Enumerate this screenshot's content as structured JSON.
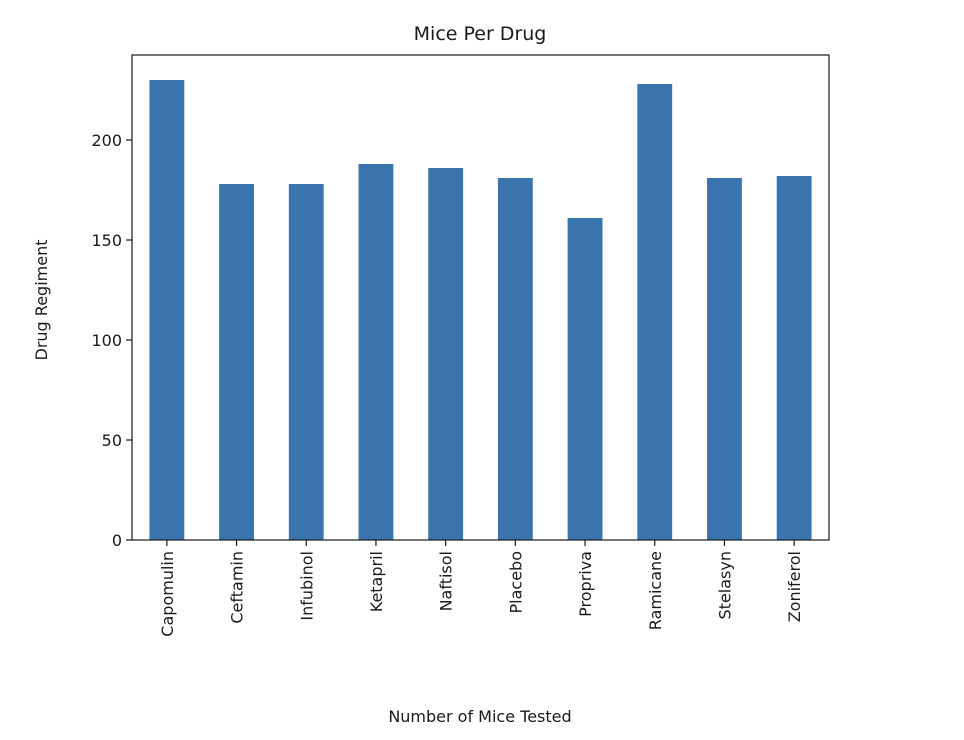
{
  "chart_data": {
    "type": "bar",
    "title": "Mice Per Drug",
    "xlabel": "Number of Mice Tested",
    "ylabel": "Drug Regiment",
    "categories": [
      "Capomulin",
      "Ceftamin",
      "Infubinol",
      "Ketapril",
      "Naftisol",
      "Placebo",
      "Propriva",
      "Ramicane",
      "Stelasyn",
      "Zoniferol"
    ],
    "values": [
      230,
      178,
      178,
      188,
      186,
      181,
      161,
      228,
      181,
      182
    ],
    "ylim": [
      0,
      241.5
    ],
    "yticks": [
      0,
      50,
      100,
      150,
      200
    ],
    "grid": false,
    "legend": null,
    "bar_color": "#3a74ae",
    "x_tick_rotation": 90
  }
}
